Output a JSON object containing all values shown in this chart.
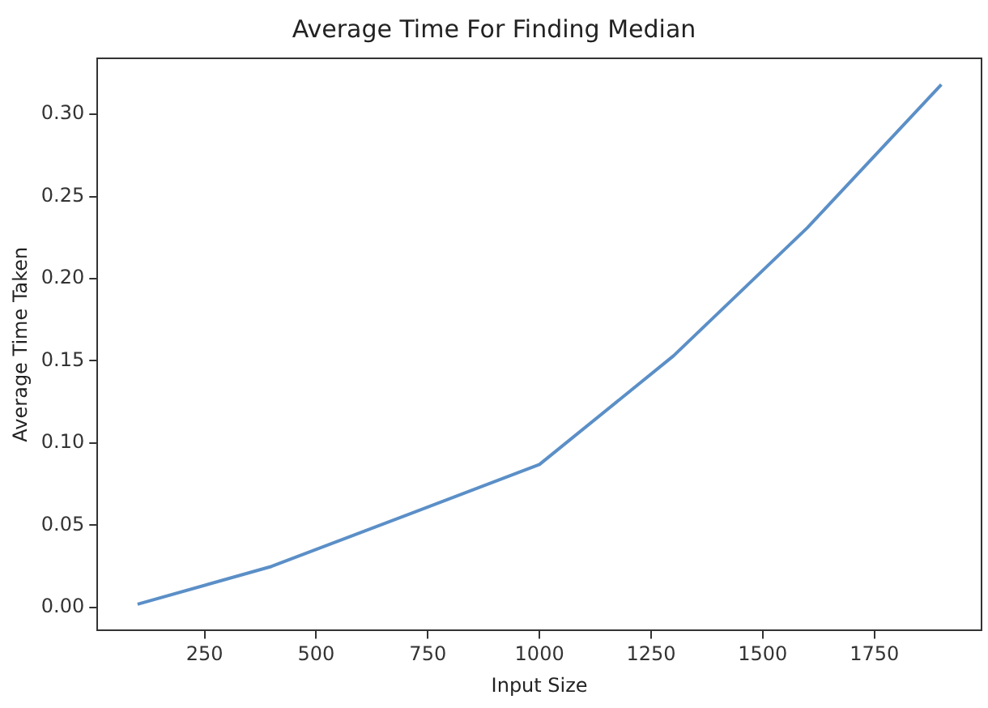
{
  "chart_data": {
    "type": "line",
    "title": "Average Time For Finding Median",
    "xlabel": "Input Size",
    "ylabel": "Average Time Taken",
    "x": [
      100,
      400,
      1000,
      1300,
      1600,
      1900
    ],
    "series": [
      {
        "color": "#5b8fc7",
        "values": [
          0.002,
          0.025,
          0.087,
          0.153,
          0.231,
          0.318
        ]
      }
    ],
    "xlim": [
      10,
      1990
    ],
    "xticks": [
      250,
      500,
      750,
      1000,
      1250,
      1500,
      1750
    ],
    "ylim": [
      -0.014,
      0.334
    ],
    "yticks": [
      {
        "value": 0,
        "label": "0.00"
      },
      {
        "value": 0.05,
        "label": "0.05"
      },
      {
        "value": 0.1,
        "label": "0.10"
      },
      {
        "value": 0.15,
        "label": "0.15"
      },
      {
        "value": 0.2,
        "label": "0.20"
      },
      {
        "value": 0.25,
        "label": "0.25"
      },
      {
        "value": 0.3,
        "label": "0.30"
      }
    ],
    "grid": false,
    "legend": false,
    "marker": "none",
    "line_style": "solid"
  }
}
